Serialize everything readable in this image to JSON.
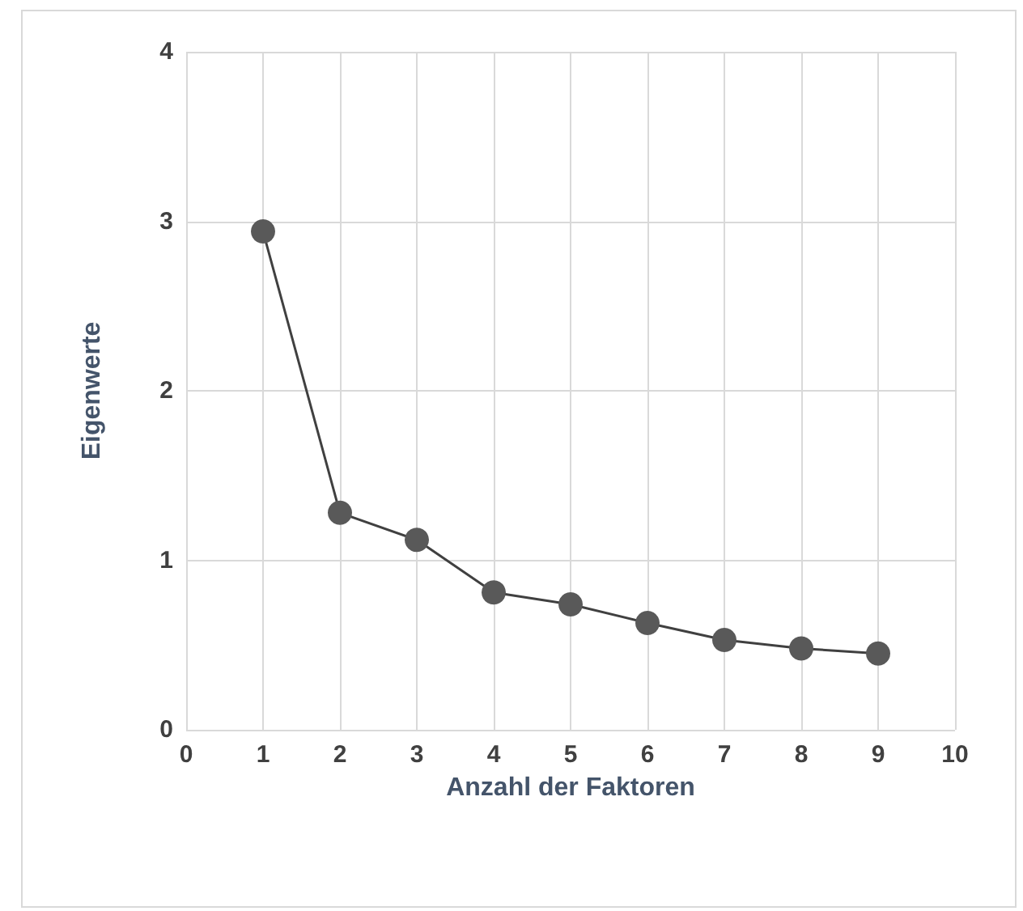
{
  "chart_data": {
    "type": "line",
    "xlabel": "Anzahl der Faktoren",
    "ylabel": "Eigenwerte",
    "x": [
      1,
      2,
      3,
      4,
      5,
      6,
      7,
      8,
      9
    ],
    "series": [
      {
        "color": "#595959",
        "values": [
          2.94,
          1.28,
          1.12,
          0.81,
          0.74,
          0.63,
          0.53,
          0.48,
          0.45
        ]
      }
    ],
    "xlim": [
      0,
      10
    ],
    "xticks": [
      0,
      1,
      2,
      3,
      4,
      5,
      6,
      7,
      8,
      9,
      10
    ],
    "ylim": [
      0,
      4
    ],
    "yticks": [
      0,
      1,
      2,
      3,
      4
    ],
    "grid": true,
    "marker": "circle",
    "line_style": "solid"
  }
}
